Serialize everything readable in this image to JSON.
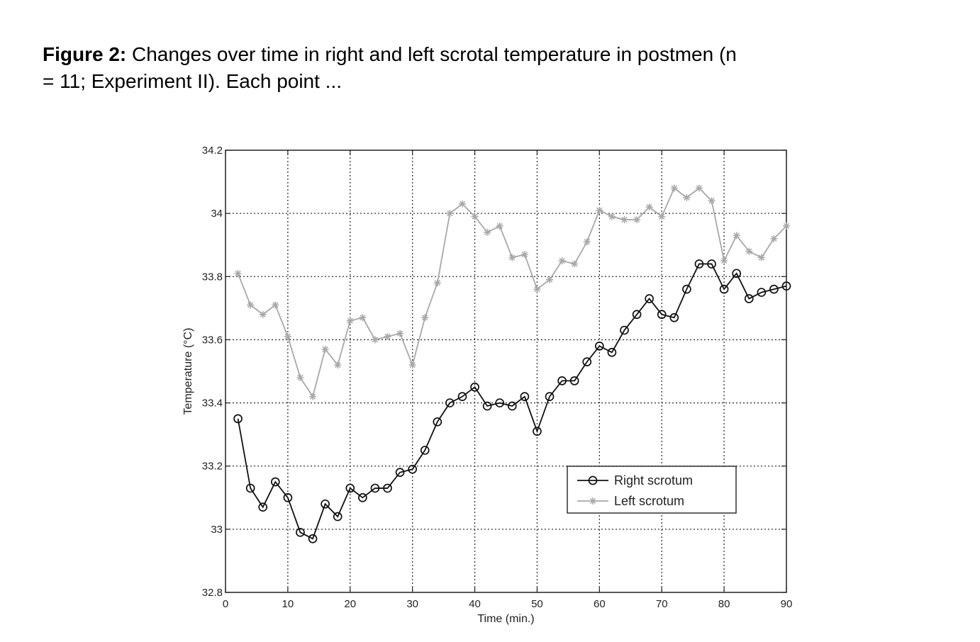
{
  "caption": {
    "label": "Figure 2:",
    "text": " Changes over time in right and left scrotal temperature in postmen (n = 11; Experiment II). Each point ..."
  },
  "chart_data": {
    "type": "line",
    "xlabel": "Time (min.)",
    "ylabel": "Temperature (°C)",
    "xlim": [
      0,
      90
    ],
    "ylim": [
      32.8,
      34.2
    ],
    "xticks": [
      0,
      10,
      20,
      30,
      40,
      50,
      60,
      70,
      80,
      90
    ],
    "yticks": [
      32.8,
      33,
      33.2,
      33.4,
      33.6,
      33.8,
      34,
      34.2
    ],
    "ytick_labels": [
      "32.8",
      "33",
      "33.2",
      "33.4",
      "33.6",
      "33.8",
      "34",
      "34.2"
    ],
    "grid": true,
    "legend_position": "lower-right",
    "x": [
      2,
      4,
      6,
      8,
      10,
      12,
      14,
      16,
      18,
      20,
      22,
      24,
      26,
      28,
      30,
      32,
      34,
      36,
      38,
      40,
      42,
      44,
      46,
      48,
      50,
      52,
      54,
      56,
      58,
      60,
      62,
      64,
      66,
      68,
      70,
      72,
      74,
      76,
      78,
      80,
      82,
      84,
      86,
      88,
      90
    ],
    "series": [
      {
        "name": "Right scrotum",
        "marker": "circle",
        "color": "#111111",
        "values": [
          33.35,
          33.13,
          33.07,
          33.15,
          33.1,
          32.99,
          32.97,
          33.08,
          33.04,
          33.13,
          33.1,
          33.13,
          33.13,
          33.18,
          33.19,
          33.25,
          33.34,
          33.4,
          33.42,
          33.45,
          33.39,
          33.4,
          33.39,
          33.42,
          33.31,
          33.42,
          33.47,
          33.47,
          33.53,
          33.58,
          33.56,
          33.63,
          33.68,
          33.73,
          33.68,
          33.67,
          33.76,
          33.84,
          33.84,
          33.76,
          33.81,
          33.73,
          33.75,
          33.76,
          33.77
        ]
      },
      {
        "name": "Left scrotum",
        "marker": "star",
        "color": "#a8a8a8",
        "values": [
          33.81,
          33.71,
          33.68,
          33.71,
          33.61,
          33.48,
          33.42,
          33.57,
          33.52,
          33.66,
          33.67,
          33.6,
          33.61,
          33.62,
          33.52,
          33.67,
          33.78,
          34.0,
          34.03,
          33.99,
          33.94,
          33.96,
          33.86,
          33.87,
          33.76,
          33.79,
          33.85,
          33.84,
          33.91,
          34.01,
          33.99,
          33.98,
          33.98,
          34.02,
          33.99,
          34.08,
          34.05,
          34.08,
          34.04,
          33.85,
          33.93,
          33.88,
          33.86,
          33.92,
          33.96
        ]
      }
    ]
  }
}
